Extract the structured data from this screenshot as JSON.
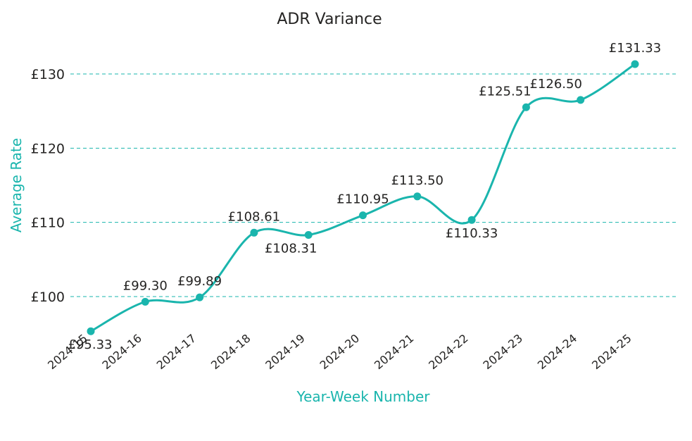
{
  "chart_data": {
    "type": "line",
    "title": "ADR Variance",
    "xlabel": "Year-Week Number",
    "ylabel": "Average Rate",
    "categories": [
      "2024-15",
      "2024-16",
      "2024-17",
      "2024-18",
      "2024-19",
      "2024-20",
      "2024-21",
      "2024-22",
      "2024-23",
      "2024-24",
      "2024-25"
    ],
    "series": [
      {
        "values": [
          95.33,
          99.3,
          99.89,
          108.61,
          108.31,
          110.95,
          113.5,
          110.33,
          125.51,
          126.5,
          131.33
        ],
        "data_labels": [
          "£95.33",
          "£99.30",
          "£99.89",
          "£108.61",
          "£108.31",
          "£110.95",
          "£113.50",
          "£110.33",
          "£125.51",
          "£126.50",
          "£131.33"
        ]
      }
    ],
    "y_ticks": [
      100,
      110,
      120,
      130
    ],
    "y_tick_labels": [
      "£100",
      "£110",
      "£120",
      "£130"
    ],
    "ylim": [
      95.33,
      131.33
    ],
    "grid": true,
    "smooth": true,
    "colors": {
      "series": "#1ab5ad",
      "grid": "#1ab5ad",
      "axis_title": "#1ab5ad",
      "text": "#252423"
    }
  }
}
